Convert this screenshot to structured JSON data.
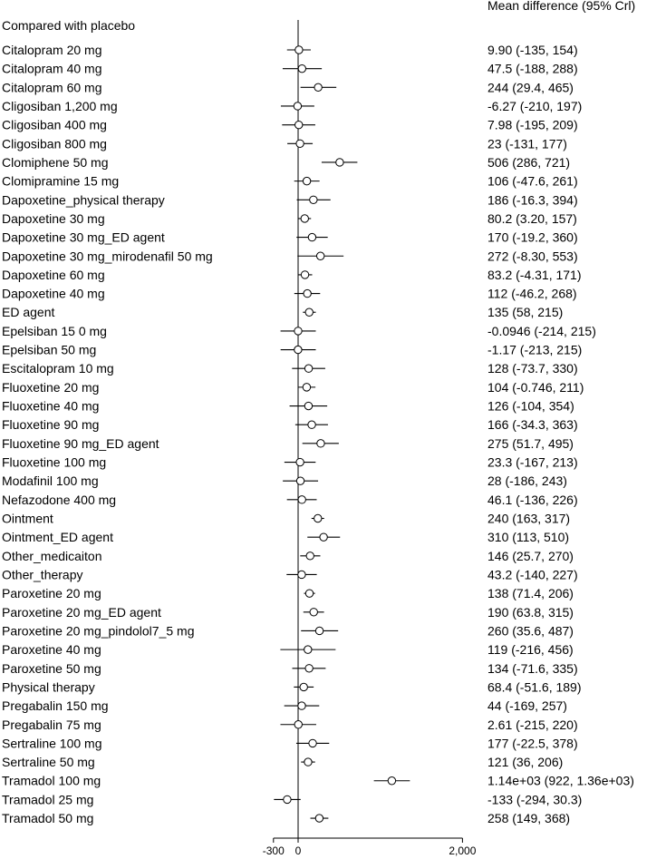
{
  "chart_data": {
    "type": "forest",
    "header_label": "Compared with placebo",
    "ci_header": "Mean difference (95% Crl)",
    "xlim": [
      -300,
      2000
    ],
    "reference_line": 0,
    "x_ticks": [
      {
        "value": -300,
        "label": "-300"
      },
      {
        "value": 0,
        "label": "0"
      },
      {
        "value": 2000,
        "label": "2,000"
      }
    ],
    "rows": [
      {
        "label": "Citalopram 20 mg",
        "mean": 9.9,
        "lower": -135,
        "upper": 154,
        "ci_text": "9.90 (-135, 154)"
      },
      {
        "label": "Citalopram 40 mg",
        "mean": 47.5,
        "lower": -188,
        "upper": 288,
        "ci_text": "47.5 (-188, 288)"
      },
      {
        "label": "Citalopram 60 mg",
        "mean": 244,
        "lower": 29.4,
        "upper": 465,
        "ci_text": "244 (29.4, 465)"
      },
      {
        "label": "Cligosiban 1,200 mg",
        "mean": -6.27,
        "lower": -210,
        "upper": 197,
        "ci_text": "-6.27 (-210, 197)"
      },
      {
        "label": "Cligosiban 400 mg",
        "mean": 7.98,
        "lower": -195,
        "upper": 209,
        "ci_text": "7.98 (-195, 209)"
      },
      {
        "label": "Cligosiban 800 mg",
        "mean": 23,
        "lower": -131,
        "upper": 177,
        "ci_text": "23 (-131, 177)"
      },
      {
        "label": "Clomiphene  50 mg",
        "mean": 506,
        "lower": 286,
        "upper": 721,
        "ci_text": "506 (286, 721)"
      },
      {
        "label": "Clomipramine 15 mg",
        "mean": 106,
        "lower": -47.6,
        "upper": 261,
        "ci_text": "106 (-47.6, 261)"
      },
      {
        "label": "Dapoxetine_physical therapy",
        "mean": 186,
        "lower": -16.3,
        "upper": 394,
        "ci_text": "186 (-16.3, 394)"
      },
      {
        "label": "Dapoxetine 30 mg",
        "mean": 80.2,
        "lower": 3.2,
        "upper": 157,
        "ci_text": "80.2 (3.20, 157)"
      },
      {
        "label": "Dapoxetine 30 mg_ED agent",
        "mean": 170,
        "lower": -19.2,
        "upper": 360,
        "ci_text": "170 (-19.2, 360)"
      },
      {
        "label": "Dapoxetine 30 mg_mirodenafil 50 mg",
        "mean": 272,
        "lower": -8.3,
        "upper": 553,
        "ci_text": "272 (-8.30, 553)"
      },
      {
        "label": "Dapoxetine 60 mg",
        "mean": 83.2,
        "lower": -4.31,
        "upper": 171,
        "ci_text": "83.2 (-4.31, 171)"
      },
      {
        "label": "Dapoxetine 40 mg",
        "mean": 112,
        "lower": -46.2,
        "upper": 268,
        "ci_text": "112 (-46.2, 268)"
      },
      {
        "label": "ED agent",
        "mean": 135,
        "lower": 58,
        "upper": 215,
        "ci_text": "135 (58, 215)"
      },
      {
        "label": "Epelsiban 15 0 mg",
        "mean": -0.0946,
        "lower": -214,
        "upper": 215,
        "ci_text": "-0.0946 (-214, 215)"
      },
      {
        "label": "Epelsiban 50 mg",
        "mean": -1.17,
        "lower": -213,
        "upper": 215,
        "ci_text": "-1.17 (-213, 215)"
      },
      {
        "label": "Escitalopram 10 mg",
        "mean": 128,
        "lower": -73.7,
        "upper": 330,
        "ci_text": "128 (-73.7, 330)"
      },
      {
        "label": "Fluoxetine 20 mg",
        "mean": 104,
        "lower": -0.746,
        "upper": 211,
        "ci_text": "104 (-0.746, 211)"
      },
      {
        "label": "Fluoxetine 40 mg",
        "mean": 126,
        "lower": -104,
        "upper": 354,
        "ci_text": "126 (-104, 354)"
      },
      {
        "label": "Fluoxetine 90 mg",
        "mean": 166,
        "lower": -34.3,
        "upper": 363,
        "ci_text": "166 (-34.3, 363)"
      },
      {
        "label": "Fluoxetine 90 mg_ED agent",
        "mean": 275,
        "lower": 51.7,
        "upper": 495,
        "ci_text": "275 (51.7, 495)"
      },
      {
        "label": "Fluoxetine 100 mg",
        "mean": 23.3,
        "lower": -167,
        "upper": 213,
        "ci_text": "23.3 (-167, 213)"
      },
      {
        "label": "Modafinil 100 mg",
        "mean": 28,
        "lower": -186,
        "upper": 243,
        "ci_text": "28 (-186, 243)"
      },
      {
        "label": "Nefazodone 400 mg",
        "mean": 46.1,
        "lower": -136,
        "upper": 226,
        "ci_text": "46.1 (-136, 226)"
      },
      {
        "label": "Ointment",
        "mean": 240,
        "lower": 163,
        "upper": 317,
        "ci_text": "240 (163, 317)"
      },
      {
        "label": "Ointment_ED agent",
        "mean": 310,
        "lower": 113,
        "upper": 510,
        "ci_text": "310 (113, 510)"
      },
      {
        "label": "Other_medicaiton",
        "mean": 146,
        "lower": 25.7,
        "upper": 270,
        "ci_text": "146 (25.7, 270)"
      },
      {
        "label": "Other_therapy",
        "mean": 43.2,
        "lower": -140,
        "upper": 227,
        "ci_text": "43.2 (-140, 227)"
      },
      {
        "label": "Paroxetine 20 mg",
        "mean": 138,
        "lower": 71.4,
        "upper": 206,
        "ci_text": "138 (71.4, 206)"
      },
      {
        "label": "Paroxetine 20 mg_ED agent",
        "mean": 190,
        "lower": 63.8,
        "upper": 315,
        "ci_text": "190 (63.8, 315)"
      },
      {
        "label": "Paroxetine 20 mg_pindolol7_5 mg",
        "mean": 260,
        "lower": 35.6,
        "upper": 487,
        "ci_text": "260 (35.6, 487)"
      },
      {
        "label": "Paroxetine 40 mg",
        "mean": 119,
        "lower": -216,
        "upper": 456,
        "ci_text": "119 (-216, 456)"
      },
      {
        "label": "Paroxetine 50 mg",
        "mean": 134,
        "lower": -71.6,
        "upper": 335,
        "ci_text": "134 (-71.6, 335)"
      },
      {
        "label": "Physical therapy",
        "mean": 68.4,
        "lower": -51.6,
        "upper": 189,
        "ci_text": "68.4 (-51.6, 189)"
      },
      {
        "label": "Pregabalin 150 mg",
        "mean": 44,
        "lower": -169,
        "upper": 257,
        "ci_text": "44 (-169, 257)"
      },
      {
        "label": "Pregabalin 75 mg",
        "mean": 2.61,
        "lower": -215,
        "upper": 220,
        "ci_text": "2.61 (-215, 220)"
      },
      {
        "label": "Sertraline 100 mg",
        "mean": 177,
        "lower": -22.5,
        "upper": 378,
        "ci_text": "177 (-22.5, 378)"
      },
      {
        "label": "Sertraline 50 mg",
        "mean": 121,
        "lower": 36,
        "upper": 206,
        "ci_text": "121 (36, 206)"
      },
      {
        "label": "Tramadol 100 mg",
        "mean": 1140,
        "lower": 922,
        "upper": 1360,
        "ci_text": "1.14e+03 (922, 1.36e+03)"
      },
      {
        "label": "Tramadol 25 mg",
        "mean": -133,
        "lower": -294,
        "upper": 30.3,
        "ci_text": "-133 (-294, 30.3)"
      },
      {
        "label": "Tramadol 50 mg",
        "mean": 258,
        "lower": 149,
        "upper": 368,
        "ci_text": "258 (149, 368)"
      }
    ],
    "grid": false,
    "colors": {
      "ink": "#000000",
      "marker_fill": "#ffffff",
      "background": "#ffffff"
    }
  }
}
